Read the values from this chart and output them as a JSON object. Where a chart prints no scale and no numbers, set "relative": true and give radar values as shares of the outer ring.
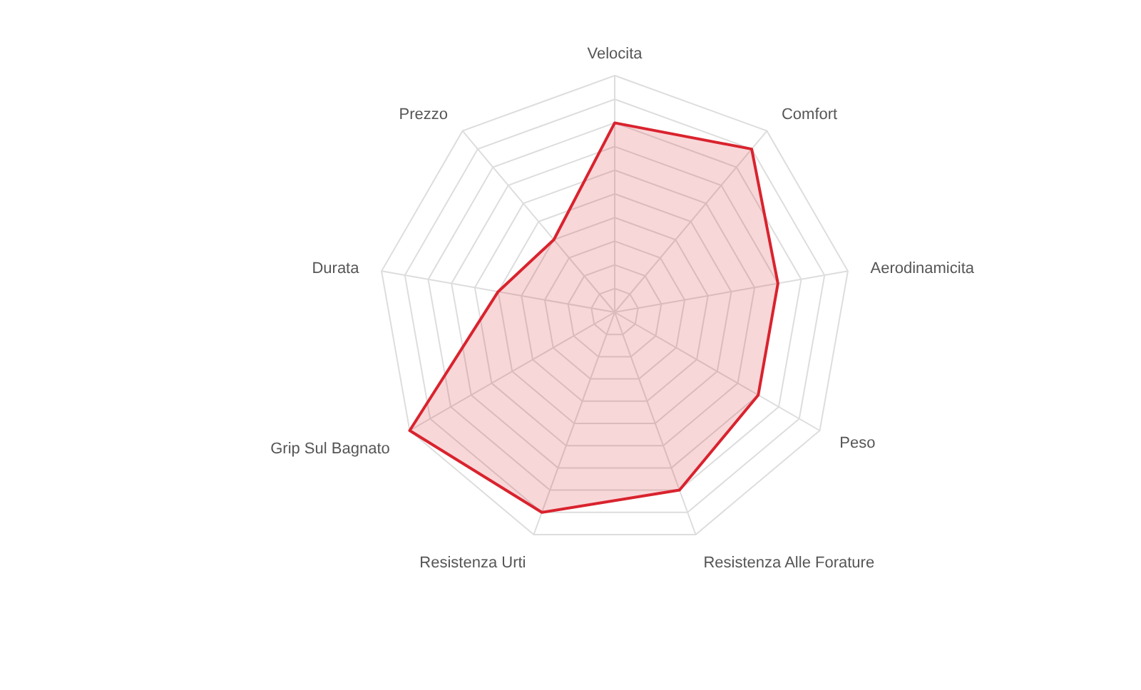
{
  "chart_data": {
    "type": "radar",
    "relative": true,
    "categories": [
      "Velocita",
      "Comfort",
      "Aerodinamicita",
      "Peso",
      "Resistenza Alle Forature",
      "Resistenza Urti",
      "Grip Sul Bagnato",
      "Durata",
      "Prezzo"
    ],
    "series": [
      {
        "color": "#d9232e",
        "values": [
          0.8,
          0.9,
          0.7,
          0.7,
          0.8,
          0.9,
          1,
          0.5,
          0.4
        ]
      }
    ],
    "grid": true,
    "marker": "none"
  }
}
